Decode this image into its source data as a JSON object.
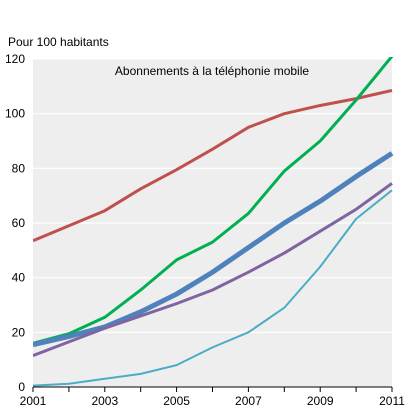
{
  "chart_data": {
    "type": "line",
    "title": "Abonnements à la téléphonie mobile",
    "ylabel": "Pour 100 habitants",
    "xlabel": "",
    "x": [
      2001,
      2002,
      2003,
      2004,
      2005,
      2006,
      2007,
      2008,
      2009,
      2010,
      2011
    ],
    "xticks": [
      "2001",
      "2003",
      "2005",
      "2007",
      "2009",
      "2011"
    ],
    "yticks": [
      "0",
      "20",
      "40",
      "60",
      "80",
      "100",
      "120"
    ],
    "xlim": [
      2001,
      2011
    ],
    "ylim": [
      0,
      120
    ],
    "grid": "horizontal",
    "series": [
      {
        "color": "#c0504d",
        "width": 3,
        "values": [
          53.5,
          59,
          64.5,
          72.5,
          79.5,
          87,
          95,
          100,
          103,
          105.5,
          108.5
        ]
      },
      {
        "color": "#00b050",
        "width": 3,
        "values": [
          16,
          19.5,
          25.5,
          35.5,
          46.5,
          53,
          63.5,
          79,
          90,
          105,
          121
        ]
      },
      {
        "color": "#4f81bd",
        "width": 5,
        "values": [
          15.5,
          18.5,
          22,
          27.5,
          34,
          42,
          51,
          60,
          68,
          77,
          85.5
        ]
      },
      {
        "color": "#8064a2",
        "width": 3,
        "values": [
          11.5,
          16.5,
          21.5,
          26,
          30.5,
          35.5,
          42,
          49,
          57,
          65,
          74.5
        ]
      },
      {
        "color": "#4bacc6",
        "width": 2,
        "values": [
          0.5,
          1.2,
          3,
          4.8,
          8,
          14.5,
          20,
          29,
          44,
          61.5,
          72
        ]
      }
    ]
  }
}
